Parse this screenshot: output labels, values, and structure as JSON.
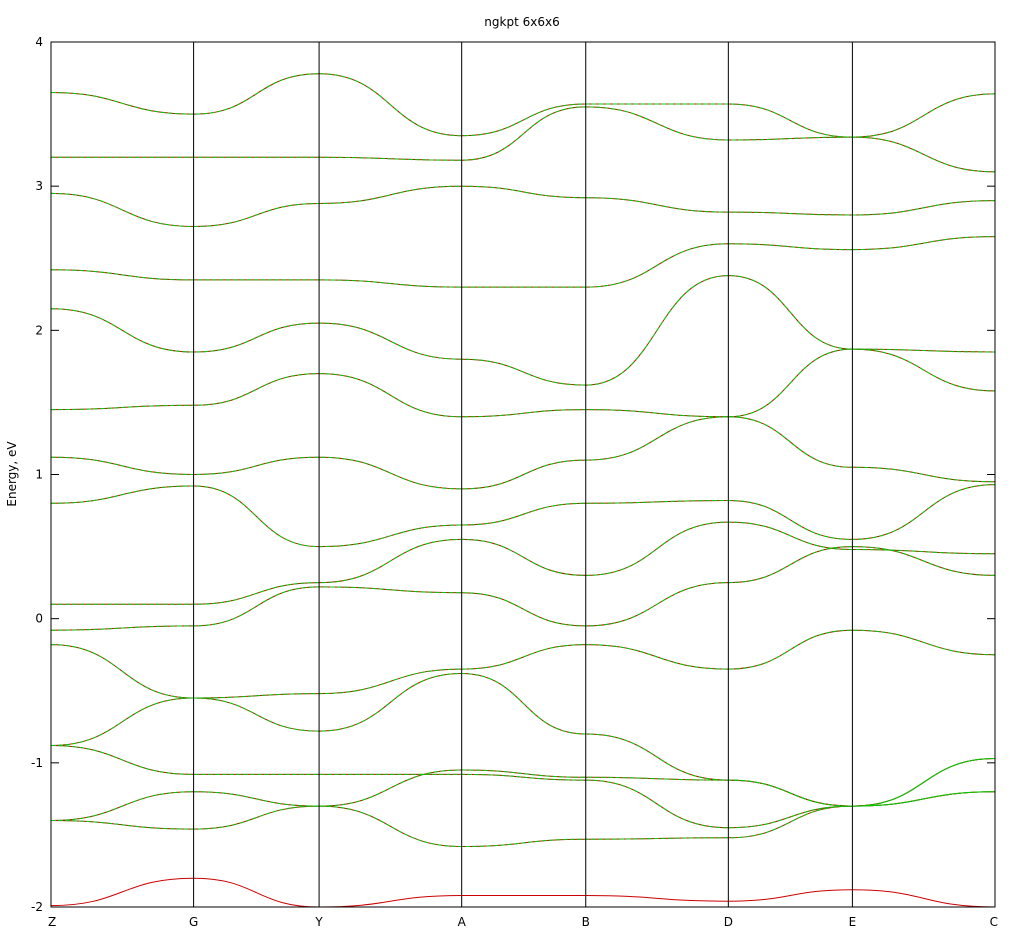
{
  "chart_data": {
    "type": "line",
    "title": "ngkpt 6x6x6",
    "ylabel": "Energy, eV",
    "xlabel": "",
    "ylim": [
      -2,
      4
    ],
    "yticks": [
      -2,
      -1,
      0,
      1,
      2,
      3,
      4
    ],
    "kpath": [
      "Z",
      "G",
      "Y",
      "A",
      "B",
      "D",
      "E",
      "C"
    ],
    "kpath_positions": [
      0,
      1,
      1.88,
      2.88,
      3.75,
      4.75,
      5.62,
      6.62
    ],
    "grid": "vertical lines at high-symmetry points",
    "colors": {
      "series_a": "#cc0000",
      "series_b": "#00cc00",
      "axes": "#000000"
    },
    "series": [
      {
        "color": "#cc0000",
        "bands": [
          [
            [
              0,
              -1.99
            ],
            [
              1,
              -1.8
            ],
            [
              1.88,
              -2.0
            ],
            [
              2.88,
              -1.92
            ],
            [
              3.75,
              -1.92
            ],
            [
              4.75,
              -1.96
            ],
            [
              5.62,
              -1.88
            ],
            [
              6.62,
              -2.0
            ]
          ],
          [
            [
              0,
              -1.4
            ],
            [
              1,
              -1.2
            ],
            [
              1.88,
              -1.3
            ],
            [
              2.88,
              -1.58
            ],
            [
              3.75,
              -1.53
            ],
            [
              4.75,
              -1.52
            ],
            [
              5.62,
              -1.3
            ],
            [
              6.62,
              -1.2
            ]
          ],
          [
            [
              0,
              -1.4
            ],
            [
              1,
              -1.46
            ],
            [
              1.88,
              -1.3
            ],
            [
              2.88,
              -1.05
            ],
            [
              3.75,
              -1.1
            ],
            [
              4.75,
              -1.12
            ],
            [
              5.62,
              -1.3
            ],
            [
              6.62,
              -0.97
            ]
          ],
          [
            [
              0,
              -0.88
            ],
            [
              1,
              -1.08
            ],
            [
              1.88,
              -1.08
            ],
            [
              2.88,
              -1.08
            ],
            [
              3.75,
              -1.12
            ],
            [
              4.75,
              -1.45
            ],
            [
              5.62,
              -1.3
            ],
            [
              6.62,
              -0.97
            ]
          ],
          [
            [
              0,
              -0.88
            ],
            [
              1,
              -0.55
            ],
            [
              1.88,
              -0.78
            ],
            [
              2.88,
              -0.38
            ],
            [
              3.75,
              -0.8
            ],
            [
              4.75,
              -1.12
            ],
            [
              5.62,
              -1.3
            ],
            [
              6.62,
              -1.2
            ]
          ],
          [
            [
              0,
              -0.18
            ],
            [
              1,
              -0.55
            ],
            [
              1.88,
              -0.52
            ],
            [
              2.88,
              -0.35
            ],
            [
              3.75,
              -0.18
            ],
            [
              4.75,
              -0.35
            ],
            [
              5.62,
              -0.08
            ],
            [
              6.62,
              -0.25
            ]
          ],
          [
            [
              0,
              -0.08
            ],
            [
              1,
              -0.05
            ],
            [
              1.88,
              0.22
            ],
            [
              2.88,
              0.18
            ],
            [
              3.75,
              -0.05
            ],
            [
              4.75,
              0.25
            ],
            [
              5.62,
              0.5
            ],
            [
              6.62,
              0.3
            ]
          ],
          [
            [
              0,
              0.1
            ],
            [
              1,
              0.1
            ],
            [
              1.88,
              0.25
            ],
            [
              2.88,
              0.55
            ],
            [
              3.75,
              0.3
            ],
            [
              4.75,
              0.67
            ],
            [
              5.62,
              0.48
            ],
            [
              6.62,
              0.45
            ]
          ],
          [
            [
              0,
              0.8
            ],
            [
              1,
              0.92
            ],
            [
              1.88,
              0.5
            ],
            [
              2.88,
              0.65
            ],
            [
              3.75,
              0.8
            ],
            [
              4.75,
              0.82
            ],
            [
              5.62,
              0.55
            ],
            [
              6.62,
              0.93
            ]
          ],
          [
            [
              0,
              1.12
            ],
            [
              1,
              1.0
            ],
            [
              1.88,
              1.12
            ],
            [
              2.88,
              0.9
            ],
            [
              3.75,
              1.1
            ],
            [
              4.75,
              1.4
            ],
            [
              5.62,
              1.05
            ],
            [
              6.62,
              0.95
            ]
          ],
          [
            [
              0,
              1.45
            ],
            [
              1,
              1.48
            ],
            [
              1.88,
              1.7
            ],
            [
              2.88,
              1.4
            ],
            [
              3.75,
              1.45
            ],
            [
              4.75,
              1.4
            ],
            [
              5.62,
              1.87
            ],
            [
              6.62,
              1.58
            ]
          ],
          [
            [
              0,
              2.15
            ],
            [
              1,
              1.85
            ],
            [
              1.88,
              2.05
            ],
            [
              2.88,
              1.8
            ],
            [
              3.75,
              1.62
            ],
            [
              4.75,
              2.38
            ],
            [
              5.62,
              1.87
            ],
            [
              6.62,
              1.85
            ]
          ],
          [
            [
              0,
              2.42
            ],
            [
              1,
              2.35
            ],
            [
              1.88,
              2.35
            ],
            [
              2.88,
              2.3
            ],
            [
              3.75,
              2.3
            ],
            [
              4.75,
              2.6
            ],
            [
              5.62,
              2.56
            ],
            [
              6.62,
              2.65
            ]
          ],
          [
            [
              0,
              2.95
            ],
            [
              1,
              2.72
            ],
            [
              1.88,
              2.88
            ],
            [
              2.88,
              3.0
            ],
            [
              3.75,
              2.92
            ],
            [
              4.75,
              2.82
            ],
            [
              5.62,
              2.8
            ],
            [
              6.62,
              2.9
            ]
          ],
          [
            [
              0,
              3.2
            ],
            [
              1,
              3.2
            ],
            [
              1.88,
              3.2
            ],
            [
              2.88,
              3.18
            ],
            [
              3.75,
              3.55
            ],
            [
              4.75,
              3.32
            ],
            [
              5.62,
              3.34
            ],
            [
              6.62,
              3.1
            ]
          ],
          [
            [
              0,
              3.65
            ],
            [
              1,
              3.5
            ],
            [
              1.88,
              3.78
            ],
            [
              2.88,
              3.35
            ],
            [
              3.75,
              3.57
            ],
            [
              4.75,
              3.57
            ],
            [
              5.62,
              3.34
            ],
            [
              6.62,
              3.64
            ]
          ]
        ]
      },
      {
        "color": "#00cc00",
        "bands": [
          [
            [
              0,
              -1.4
            ],
            [
              1,
              -1.2
            ],
            [
              1.88,
              -1.3
            ],
            [
              2.88,
              -1.58
            ],
            [
              3.75,
              -1.53
            ],
            [
              4.75,
              -1.52
            ],
            [
              5.62,
              -1.3
            ],
            [
              6.62,
              -1.2
            ]
          ],
          [
            [
              0,
              -1.4
            ],
            [
              1,
              -1.46
            ],
            [
              1.88,
              -1.3
            ],
            [
              2.88,
              -1.05
            ],
            [
              3.75,
              -1.1
            ],
            [
              4.75,
              -1.12
            ],
            [
              5.62,
              -1.3
            ],
            [
              6.62,
              -0.97
            ]
          ],
          [
            [
              0,
              -0.88
            ],
            [
              1,
              -1.08
            ],
            [
              1.88,
              -1.08
            ],
            [
              2.88,
              -1.08
            ],
            [
              3.75,
              -1.12
            ],
            [
              4.75,
              -1.45
            ],
            [
              5.62,
              -1.3
            ],
            [
              6.62,
              -0.97
            ]
          ],
          [
            [
              0,
              -0.88
            ],
            [
              1,
              -0.55
            ],
            [
              1.88,
              -0.78
            ],
            [
              2.88,
              -0.38
            ],
            [
              3.75,
              -0.8
            ],
            [
              4.75,
              -1.12
            ],
            [
              5.62,
              -1.3
            ],
            [
              6.62,
              -1.2
            ]
          ],
          [
            [
              0,
              -0.18
            ],
            [
              1,
              -0.55
            ],
            [
              1.88,
              -0.52
            ],
            [
              2.88,
              -0.35
            ],
            [
              3.75,
              -0.18
            ],
            [
              4.75,
              -0.35
            ],
            [
              5.62,
              -0.08
            ],
            [
              6.62,
              -0.25
            ]
          ],
          [
            [
              0,
              -0.08
            ],
            [
              1,
              -0.05
            ],
            [
              1.88,
              0.22
            ],
            [
              2.88,
              0.18
            ],
            [
              3.75,
              -0.05
            ],
            [
              4.75,
              0.25
            ],
            [
              5.62,
              0.5
            ],
            [
              6.62,
              0.3
            ]
          ],
          [
            [
              0,
              0.1
            ],
            [
              1,
              0.1
            ],
            [
              1.88,
              0.25
            ],
            [
              2.88,
              0.55
            ],
            [
              3.75,
              0.3
            ],
            [
              4.75,
              0.67
            ],
            [
              5.62,
              0.48
            ],
            [
              6.62,
              0.45
            ]
          ],
          [
            [
              0,
              0.8
            ],
            [
              1,
              0.92
            ],
            [
              1.88,
              0.5
            ],
            [
              2.88,
              0.65
            ],
            [
              3.75,
              0.8
            ],
            [
              4.75,
              0.82
            ],
            [
              5.62,
              0.55
            ],
            [
              6.62,
              0.93
            ]
          ],
          [
            [
              0,
              1.12
            ],
            [
              1,
              1.0
            ],
            [
              1.88,
              1.12
            ],
            [
              2.88,
              0.9
            ],
            [
              3.75,
              1.1
            ],
            [
              4.75,
              1.4
            ],
            [
              5.62,
              1.05
            ],
            [
              6.62,
              0.95
            ]
          ],
          [
            [
              0,
              1.45
            ],
            [
              1,
              1.48
            ],
            [
              1.88,
              1.7
            ],
            [
              2.88,
              1.4
            ],
            [
              3.75,
              1.45
            ],
            [
              4.75,
              1.4
            ],
            [
              5.62,
              1.87
            ],
            [
              6.62,
              1.58
            ]
          ],
          [
            [
              0,
              2.15
            ],
            [
              1,
              1.85
            ],
            [
              1.88,
              2.05
            ],
            [
              2.88,
              1.8
            ],
            [
              3.75,
              1.62
            ],
            [
              4.75,
              2.38
            ],
            [
              5.62,
              1.87
            ],
            [
              6.62,
              1.85
            ]
          ],
          [
            [
              0,
              2.42
            ],
            [
              1,
              2.35
            ],
            [
              1.88,
              2.35
            ],
            [
              2.88,
              2.3
            ],
            [
              3.75,
              2.3
            ],
            [
              4.75,
              2.6
            ],
            [
              5.62,
              2.56
            ],
            [
              6.62,
              2.65
            ]
          ],
          [
            [
              0,
              2.95
            ],
            [
              1,
              2.72
            ],
            [
              1.88,
              2.88
            ],
            [
              2.88,
              3.0
            ],
            [
              3.75,
              2.92
            ],
            [
              4.75,
              2.82
            ],
            [
              5.62,
              2.8
            ],
            [
              6.62,
              2.9
            ]
          ],
          [
            [
              0,
              3.2
            ],
            [
              1,
              3.2
            ],
            [
              1.88,
              3.2
            ],
            [
              2.88,
              3.18
            ],
            [
              3.75,
              3.55
            ],
            [
              4.75,
              3.32
            ],
            [
              5.62,
              3.34
            ],
            [
              6.62,
              3.1
            ]
          ],
          [
            [
              0,
              3.65
            ],
            [
              1,
              3.5
            ],
            [
              1.88,
              3.78
            ],
            [
              2.88,
              3.35
            ],
            [
              3.75,
              3.57
            ],
            [
              4.75,
              3.57
            ],
            [
              5.62,
              3.34
            ],
            [
              6.62,
              3.64
            ]
          ]
        ]
      }
    ]
  }
}
